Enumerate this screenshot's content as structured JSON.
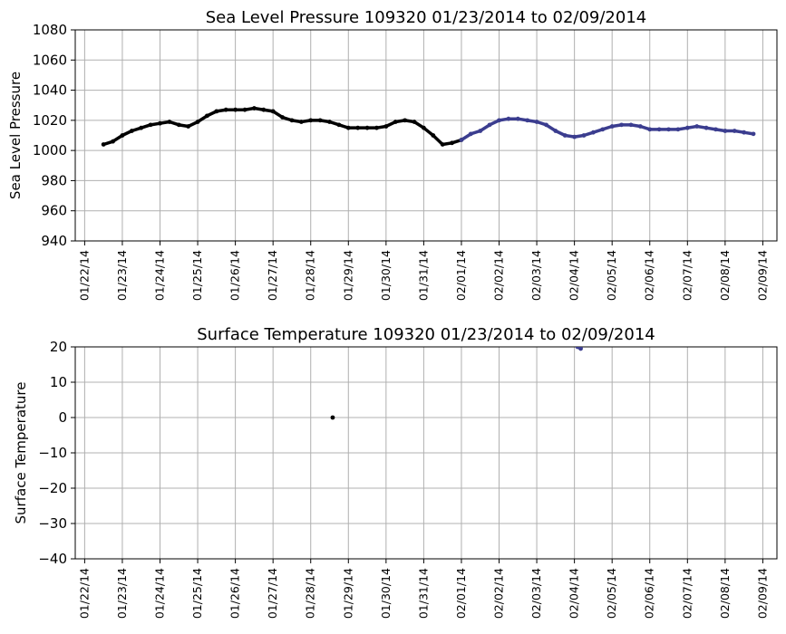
{
  "chart_data": [
    {
      "type": "scatter",
      "title": "Sea Level Pressure 109320  01/23/2014 to 02/09/2014",
      "xlabel": "",
      "ylabel": "Sea Level Pressure",
      "ylim": [
        940,
        1080
      ],
      "yticks": [
        940,
        960,
        980,
        1000,
        1020,
        1040,
        1060,
        1080
      ],
      "xlim": [
        "01/21/14 18:00",
        "02/09/14 09:00"
      ],
      "xtick_labels": [
        "01/22/14",
        "01/23/14",
        "01/24/14",
        "01/25/14",
        "01/26/14",
        "01/27/14",
        "01/28/14",
        "01/29/14",
        "01/30/14",
        "01/31/14",
        "02/01/14",
        "02/02/14",
        "02/03/14",
        "02/04/14",
        "02/05/14",
        "02/06/14",
        "02/07/14",
        "02/08/14",
        "02/09/14"
      ],
      "grid": true,
      "series": [
        {
          "color": "#000000",
          "x": [
            "01/22/14 12:00",
            "01/22/14 18:00",
            "01/23/14 00:00",
            "01/23/14 06:00",
            "01/23/14 12:00",
            "01/23/14 18:00",
            "01/24/14 00:00",
            "01/24/14 06:00",
            "01/24/14 12:00",
            "01/24/14 18:00",
            "01/25/14 00:00",
            "01/25/14 06:00",
            "01/25/14 12:00",
            "01/25/14 18:00",
            "01/26/14 00:00",
            "01/26/14 06:00",
            "01/26/14 12:00",
            "01/26/14 18:00",
            "01/27/14 00:00",
            "01/27/14 06:00",
            "01/27/14 12:00",
            "01/27/14 18:00",
            "01/28/14 00:00",
            "01/28/14 06:00",
            "01/28/14 12:00",
            "01/28/14 18:00",
            "01/29/14 00:00",
            "01/29/14 06:00",
            "01/29/14 12:00",
            "01/29/14 18:00",
            "01/30/14 00:00",
            "01/30/14 06:00",
            "01/30/14 12:00",
            "01/30/14 18:00",
            "01/31/14 00:00",
            "01/31/14 06:00",
            "01/31/14 12:00",
            "01/31/14 18:00",
            "02/01/14 00:00"
          ],
          "y": [
            1004,
            1006,
            1010,
            1013,
            1015,
            1017,
            1018,
            1019,
            1017,
            1016,
            1019,
            1023,
            1026,
            1027,
            1027,
            1027,
            1028,
            1027,
            1026,
            1022,
            1020,
            1019,
            1020,
            1020,
            1019,
            1017,
            1015,
            1015,
            1015,
            1015,
            1016,
            1019,
            1020,
            1019,
            1015,
            1010,
            1004,
            1005,
            1007
          ]
        },
        {
          "color": "#3b3d8f",
          "x": [
            "02/01/14 00:00",
            "02/01/14 06:00",
            "02/01/14 12:00",
            "02/01/14 18:00",
            "02/02/14 00:00",
            "02/02/14 06:00",
            "02/02/14 12:00",
            "02/02/14 18:00",
            "02/03/14 00:00",
            "02/03/14 06:00",
            "02/03/14 12:00",
            "02/03/14 18:00",
            "02/04/14 00:00",
            "02/04/14 06:00",
            "02/04/14 12:00",
            "02/04/14 18:00",
            "02/05/14 00:00",
            "02/05/14 06:00",
            "02/05/14 12:00",
            "02/05/14 18:00",
            "02/06/14 00:00",
            "02/06/14 06:00",
            "02/06/14 12:00",
            "02/06/14 18:00",
            "02/07/14 00:00",
            "02/07/14 06:00",
            "02/07/14 12:00",
            "02/07/14 18:00",
            "02/08/14 00:00",
            "02/08/14 06:00",
            "02/08/14 12:00",
            "02/08/14 18:00"
          ],
          "y": [
            1007,
            1011,
            1013,
            1017,
            1020,
            1021,
            1021,
            1020,
            1019,
            1017,
            1013,
            1010,
            1009,
            1010,
            1012,
            1014,
            1016,
            1017,
            1017,
            1016,
            1014,
            1014,
            1014,
            1014,
            1015,
            1016,
            1015,
            1014,
            1013,
            1013,
            1012,
            1011
          ]
        }
      ]
    },
    {
      "type": "scatter",
      "title": "Surface Temperature 109320  01/23/2014 to 02/09/2014",
      "xlabel": "",
      "ylabel": "Surface Temperature",
      "ylim": [
        -40,
        20
      ],
      "yticks": [
        -40,
        -30,
        -20,
        -10,
        0,
        10,
        20
      ],
      "xlim": [
        "01/21/14 18:00",
        "02/09/14 09:00"
      ],
      "xtick_labels": [
        "01/22/14",
        "01/23/14",
        "01/24/14",
        "01/25/14",
        "01/26/14",
        "01/27/14",
        "01/28/14",
        "01/29/14",
        "01/30/14",
        "01/31/14",
        "02/01/14",
        "02/02/14",
        "02/03/14",
        "02/04/14",
        "02/05/14",
        "02/06/14",
        "02/07/14",
        "02/08/14",
        "02/09/14"
      ],
      "grid": true,
      "series": [
        {
          "color": "#000000",
          "x": [
            "01/28/14 14:00"
          ],
          "y": [
            0
          ]
        },
        {
          "color": "#3b3d8f",
          "x": [
            "02/04/14 02:00",
            "02/04/14 04:00"
          ],
          "y": [
            20,
            19.5
          ]
        }
      ]
    }
  ]
}
